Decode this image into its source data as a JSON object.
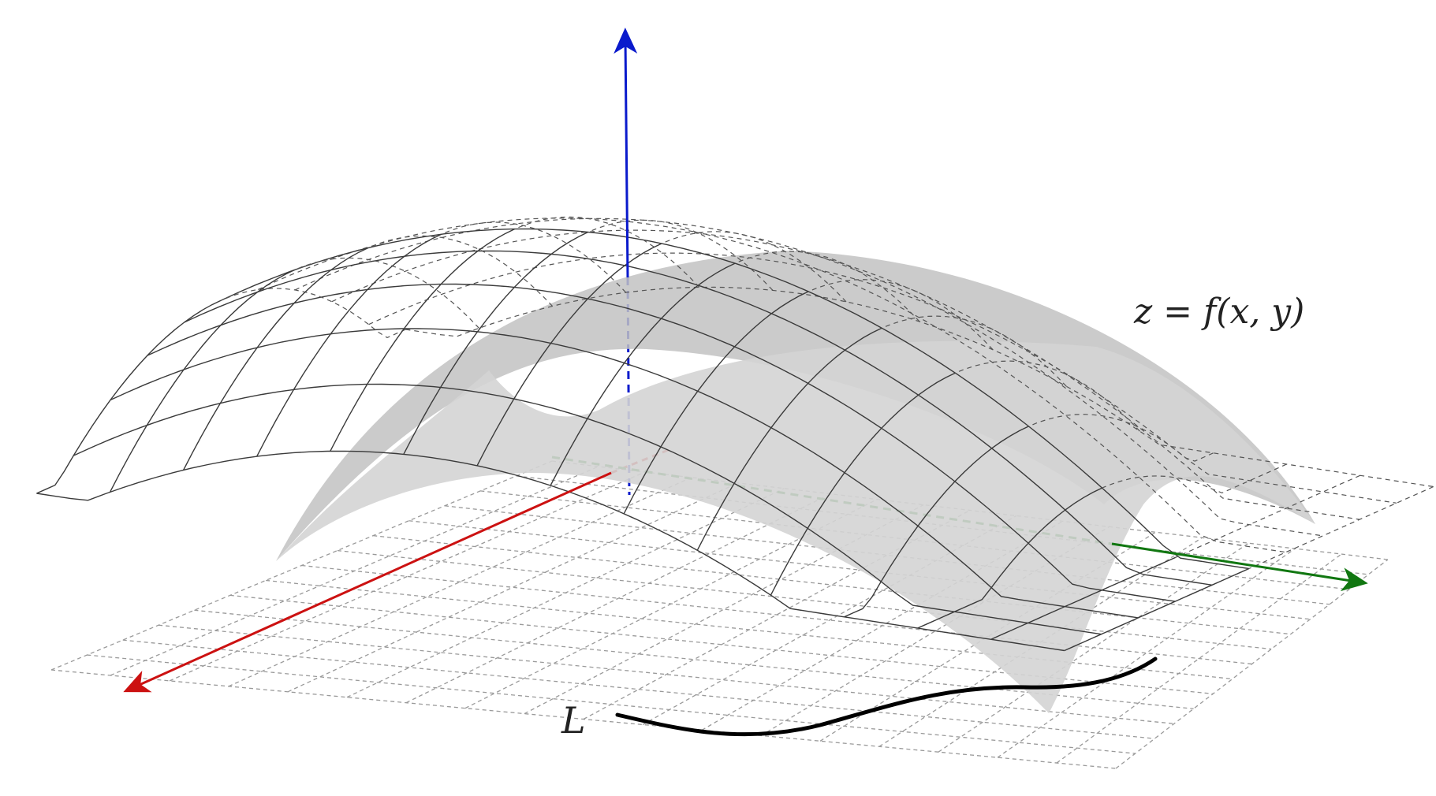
{
  "figure": {
    "surface_label": "z = f(x, y)",
    "curve_label": "L"
  },
  "colors": {
    "x_axis": "#cc1111",
    "y_axis": "#117711",
    "z_axis": "#0a1acc",
    "surface_fill": "#cfcfcf",
    "surface_shade": "#b9b9b9",
    "grid": "#9a9a9a",
    "curve": "#000000"
  },
  "icons": {
    "x_axis_arrow": "arrowhead-red",
    "y_axis_arrow": "arrowhead-green",
    "z_axis_arrow": "arrowhead-blue"
  }
}
